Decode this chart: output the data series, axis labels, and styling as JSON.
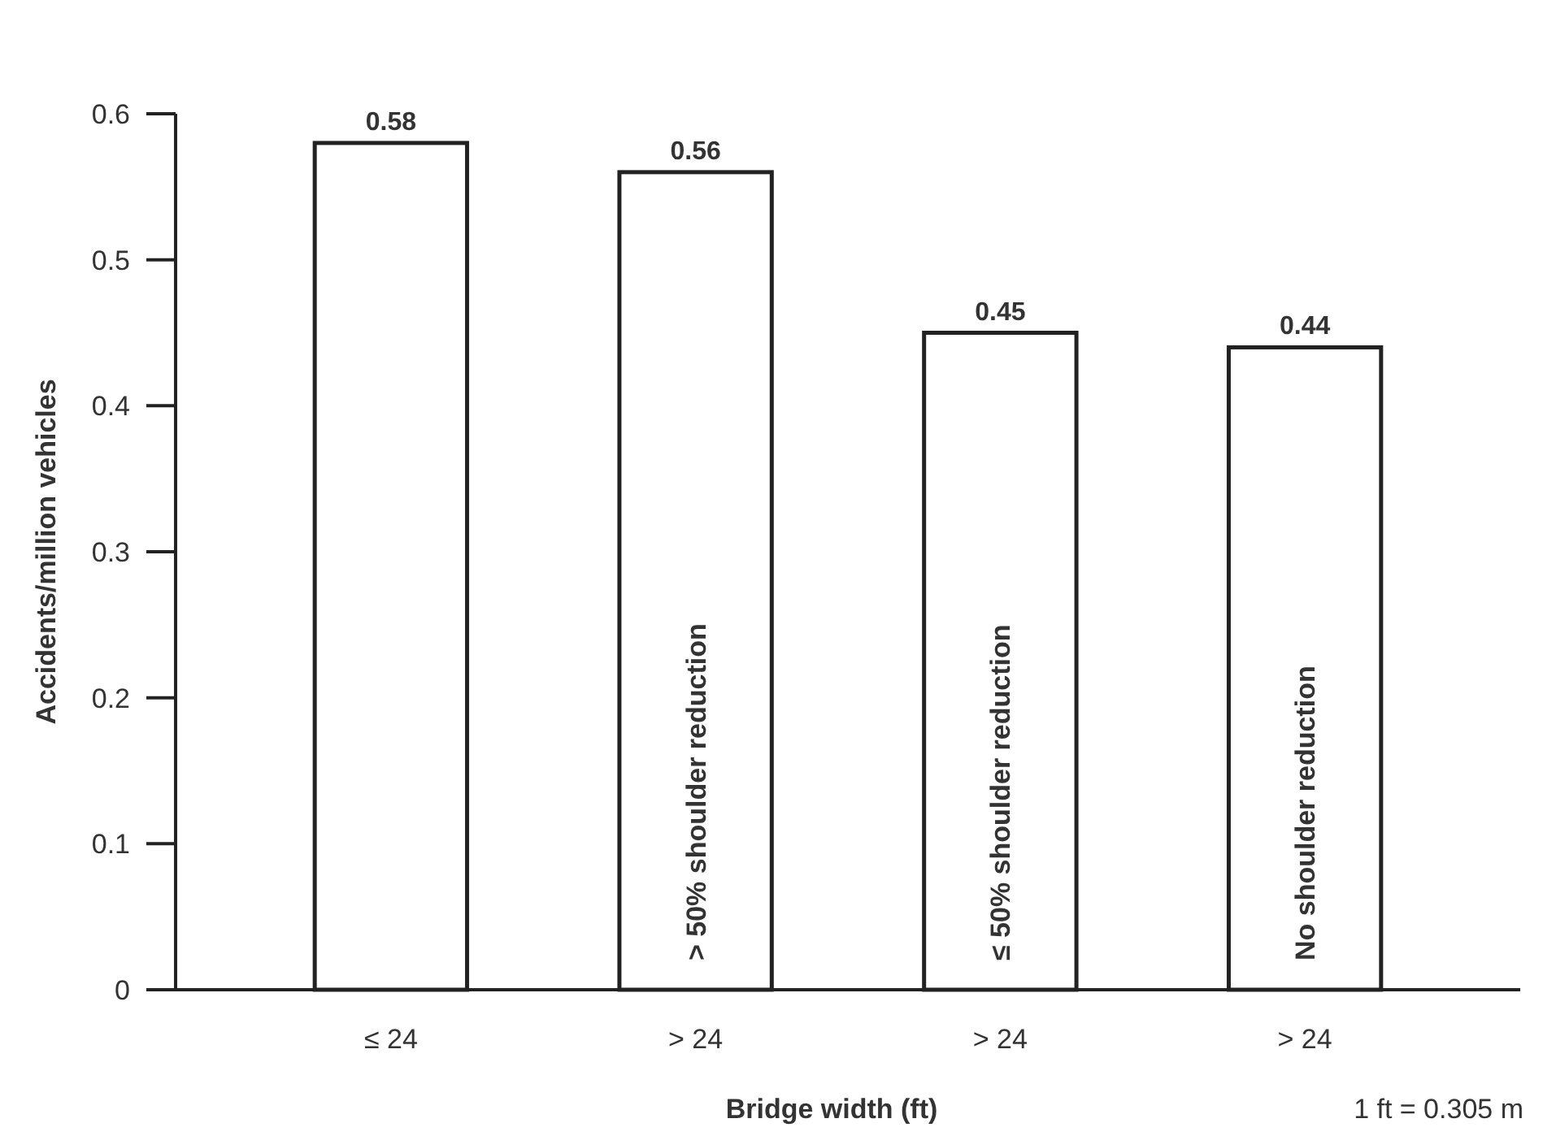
{
  "chart_data": {
    "type": "bar",
    "categories": [
      "≤ 24",
      "> 24",
      "> 24",
      "> 24"
    ],
    "values": [
      0.58,
      0.56,
      0.45,
      0.44
    ],
    "color": "#ffffff",
    "ylim": [
      0,
      0.6
    ],
    "yticks": [
      0,
      0.1,
      0.2,
      0.3,
      0.4,
      0.5,
      0.6
    ],
    "ylabel": "Accidents/million vehicles",
    "xlabel": "Bridge width (ft)",
    "data_labels": true,
    "grid": false,
    "annotations": [
      "> 50% shoulder reduction",
      "≤ 50% shoulder reduction",
      "No shoulder reduction",
      "1 ft = 0.305 m"
    ]
  }
}
